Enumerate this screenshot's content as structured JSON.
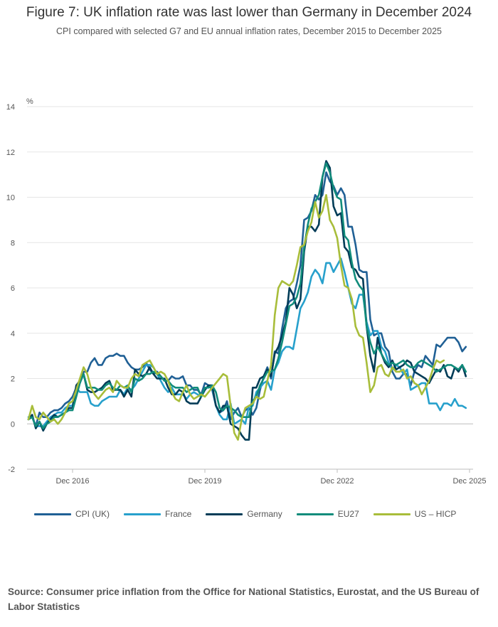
{
  "header": {
    "title": "Figure 7: UK inflation rate was last lower than Germany in December 2024",
    "subtitle": "CPI compared with selected G7 and EU annual inflation rates, December 2015 to December 2025"
  },
  "source": "Source: Consumer price inflation from the Office for National Statistics, Eurostat, and the US Bureau of Labor Statistics",
  "chart_data": {
    "type": "line",
    "title": "Figure 7: UK inflation rate was last lower than Germany in December 2024",
    "subtitle": "CPI compared with selected G7 and EU annual inflation rates, December 2015 to December 2025",
    "ylabel": "%",
    "xlabel": "",
    "ylim": [
      -2,
      14
    ],
    "y_ticks": [
      "-2",
      "0",
      "2",
      "4",
      "6",
      "8",
      "10",
      "12",
      "14"
    ],
    "x_ticks": [
      "Dec 2016",
      "Dec 2019",
      "Dec 2022",
      "Dec 2025"
    ],
    "x_range": [
      "Dec 2015",
      "Dec 2025"
    ],
    "frequency": "monthly",
    "grid": "horizontal",
    "legend_position": "bottom",
    "series": [
      {
        "name": "CPI (UK)",
        "color": "#206095",
        "values": [
          0.2,
          0.3,
          -0.1,
          0.5,
          0.3,
          0.3,
          0.5,
          0.6,
          0.6,
          0.7,
          0.9,
          1.0,
          1.2,
          1.6,
          1.8,
          2.3,
          2.3,
          2.7,
          2.9,
          2.6,
          2.6,
          2.9,
          3.0,
          3.0,
          3.1,
          3.0,
          3.0,
          2.7,
          2.5,
          2.4,
          2.4,
          2.5,
          2.7,
          2.4,
          2.2,
          2.3,
          2.1,
          1.9,
          1.9,
          2.1,
          2.0,
          2.0,
          2.1,
          1.7,
          1.7,
          1.5,
          1.5,
          1.3,
          1.8,
          1.7,
          1.5,
          0.8,
          0.5,
          0.6,
          1.0,
          0.2,
          0.5,
          0.7,
          0.3,
          0.6,
          0.7,
          0.4,
          0.7,
          1.5,
          2.1,
          2.5,
          2.0,
          3.2,
          3.1,
          4.2,
          5.1,
          5.4,
          5.5,
          6.2,
          7.0,
          9.0,
          9.1,
          9.4,
          10.1,
          9.9,
          10.1,
          11.1,
          10.7,
          10.5,
          10.1,
          10.4,
          10.1,
          8.7,
          8.7,
          7.9,
          6.8,
          6.7,
          6.7,
          4.6,
          3.9,
          4.0,
          4.0,
          3.4,
          3.2,
          2.3,
          2.0,
          2.0,
          2.2,
          2.2,
          1.7,
          2.3,
          2.6,
          2.5,
          3.0,
          2.8,
          2.6,
          3.5,
          3.4,
          3.6,
          3.8,
          3.8,
          3.8,
          3.6,
          3.2,
          3.4
        ]
      },
      {
        "name": "France",
        "color": "#27a0cc",
        "values": [
          0.3,
          0.3,
          -0.1,
          -0.1,
          -0.1,
          0.1,
          0.3,
          0.4,
          0.5,
          0.5,
          0.7,
          0.8,
          0.8,
          1.6,
          1.4,
          1.4,
          1.4,
          0.9,
          0.8,
          0.8,
          1.0,
          1.1,
          1.2,
          1.2,
          1.2,
          1.5,
          1.3,
          1.6,
          1.5,
          1.7,
          2.0,
          2.3,
          2.6,
          2.6,
          2.5,
          2.2,
          1.9,
          1.6,
          1.4,
          1.6,
          1.3,
          1.3,
          1.3,
          1.1,
          1.3,
          1.4,
          1.3,
          1.2,
          1.5,
          1.7,
          1.6,
          0.8,
          0.4,
          0.2,
          0.2,
          0.9,
          0.0,
          0.1,
          0.2,
          0.0,
          0.8,
          0.8,
          1.4,
          1.6,
          1.8,
          1.9,
          1.5,
          2.4,
          2.7,
          3.2,
          3.4,
          3.4,
          3.3,
          4.2,
          5.1,
          5.4,
          5.8,
          6.5,
          6.8,
          6.6,
          6.2,
          7.1,
          7.1,
          6.7,
          7.0,
          7.3,
          6.7,
          6.0,
          5.3,
          5.1,
          5.7,
          5.7,
          4.5,
          3.9,
          4.1,
          4.1,
          3.4,
          3.2,
          2.7,
          2.4,
          2.6,
          2.5,
          2.2,
          2.4,
          1.5,
          1.6,
          1.7,
          1.8,
          1.8,
          0.9,
          0.9,
          0.9,
          0.6,
          0.9,
          0.9,
          0.8,
          1.1,
          0.8,
          0.8,
          0.7
        ]
      },
      {
        "name": "Germany",
        "color": "#003c57",
        "values": [
          0.2,
          0.4,
          -0.2,
          0.1,
          -0.3,
          0.0,
          0.2,
          0.4,
          0.3,
          0.4,
          0.5,
          0.7,
          0.7,
          1.7,
          1.9,
          2.2,
          1.5,
          1.4,
          1.4,
          1.5,
          1.6,
          1.8,
          1.9,
          1.5,
          1.5,
          1.5,
          1.2,
          1.5,
          1.2,
          2.4,
          2.2,
          2.1,
          2.2,
          2.5,
          2.2,
          2.0,
          2.0,
          2.0,
          1.6,
          1.3,
          1.3,
          1.5,
          1.4,
          1.0,
          0.9,
          0.9,
          0.9,
          1.2,
          1.5,
          1.7,
          1.7,
          0.8,
          0.5,
          0.8,
          0.8,
          0.0,
          -0.1,
          -0.2,
          -0.5,
          -0.7,
          -0.7,
          1.6,
          1.6,
          2.0,
          2.1,
          2.4,
          2.1,
          3.1,
          3.4,
          3.9,
          4.5,
          6.0,
          5.7,
          5.1,
          5.5,
          7.6,
          8.7,
          8.7,
          8.5,
          8.8,
          10.9,
          11.6,
          11.3,
          9.6,
          9.2,
          9.3,
          7.8,
          7.6,
          6.9,
          6.8,
          6.5,
          6.4,
          4.3,
          3.0,
          2.3,
          3.8,
          3.1,
          2.7,
          2.5,
          2.8,
          2.4,
          2.5,
          2.6,
          2.8,
          2.7,
          2.3,
          2.2,
          2.1,
          2.0,
          1.8,
          2.1,
          2.4,
          2.3,
          2.6,
          2.1,
          2.0,
          2.5,
          2.3,
          2.6,
          2.1
        ]
      },
      {
        "name": "EU27",
        "color": "#118c7b",
        "values": [
          0.2,
          0.3,
          -0.1,
          0.1,
          -0.2,
          0.0,
          0.1,
          0.3,
          0.3,
          0.4,
          0.5,
          0.6,
          0.6,
          1.2,
          1.8,
          2.2,
          1.6,
          1.6,
          1.6,
          1.5,
          1.5,
          1.7,
          1.8,
          1.6,
          1.5,
          1.7,
          1.6,
          1.7,
          1.4,
          2.0,
          1.9,
          2.0,
          2.2,
          2.2,
          2.3,
          2.2,
          2.1,
          1.9,
          1.9,
          1.7,
          1.6,
          1.6,
          1.6,
          1.4,
          1.5,
          1.6,
          1.6,
          1.2,
          1.6,
          1.6,
          1.7,
          1.4,
          0.7,
          0.6,
          0.8,
          0.7,
          0.6,
          0.4,
          0.3,
          0.3,
          0.3,
          1.0,
          1.2,
          1.7,
          2.0,
          2.3,
          2.3,
          2.4,
          2.9,
          3.6,
          4.4,
          5.2,
          5.3,
          5.6,
          6.2,
          7.8,
          8.8,
          9.5,
          9.8,
          10.1,
          10.9,
          11.5,
          11.1,
          10.4,
          10.0,
          9.9,
          8.3,
          8.1,
          7.1,
          6.4,
          6.1,
          5.9,
          4.3,
          3.6,
          3.1,
          3.4,
          3.1,
          2.8,
          2.6,
          2.7,
          2.6,
          2.7,
          2.8,
          2.6,
          2.5,
          2.5,
          2.7,
          2.8,
          2.7,
          2.6,
          2.5,
          2.3,
          2.4,
          2.5,
          2.6,
          2.6,
          2.5,
          2.4,
          2.6,
          2.3
        ]
      },
      {
        "name": "US – HICP",
        "color": "#a8bd3a",
        "values": [
          0.2,
          0.8,
          0.3,
          0.2,
          0.5,
          0.3,
          0.1,
          0.2,
          0.0,
          0.2,
          0.5,
          0.9,
          1.0,
          1.5,
          2.0,
          2.5,
          2.2,
          1.6,
          1.3,
          1.1,
          1.3,
          1.5,
          1.6,
          1.4,
          1.9,
          1.7,
          1.6,
          1.6,
          2.0,
          2.2,
          2.1,
          2.6,
          2.7,
          2.8,
          2.5,
          2.2,
          2.3,
          2.2,
          1.9,
          1.4,
          1.1,
          1.0,
          1.4,
          1.7,
          1.3,
          1.1,
          1.2,
          1.3,
          1.2,
          1.4,
          1.6,
          1.8,
          2.0,
          2.2,
          2.1,
          0.8,
          -0.4,
          -0.7,
          0.2,
          0.7,
          0.8,
          0.9,
          1.2,
          1.1,
          1.2,
          1.9,
          2.6,
          4.8,
          6.0,
          6.3,
          6.2,
          6.1,
          6.3,
          7.0,
          7.8,
          7.9,
          8.5,
          8.9,
          9.8,
          9.1,
          9.4,
          10.1,
          9.0,
          8.7,
          8.2,
          7.0,
          6.1,
          6.0,
          5.5,
          4.3,
          3.9,
          3.8,
          2.7,
          1.4,
          1.7,
          2.5,
          2.6,
          2.2,
          2.1,
          2.5,
          2.3,
          2.3,
          2.4,
          2.0,
          2.1,
          1.8,
          1.7,
          1.3,
          1.6,
          1.9,
          2.4,
          2.8,
          2.7,
          2.8
        ]
      }
    ]
  }
}
